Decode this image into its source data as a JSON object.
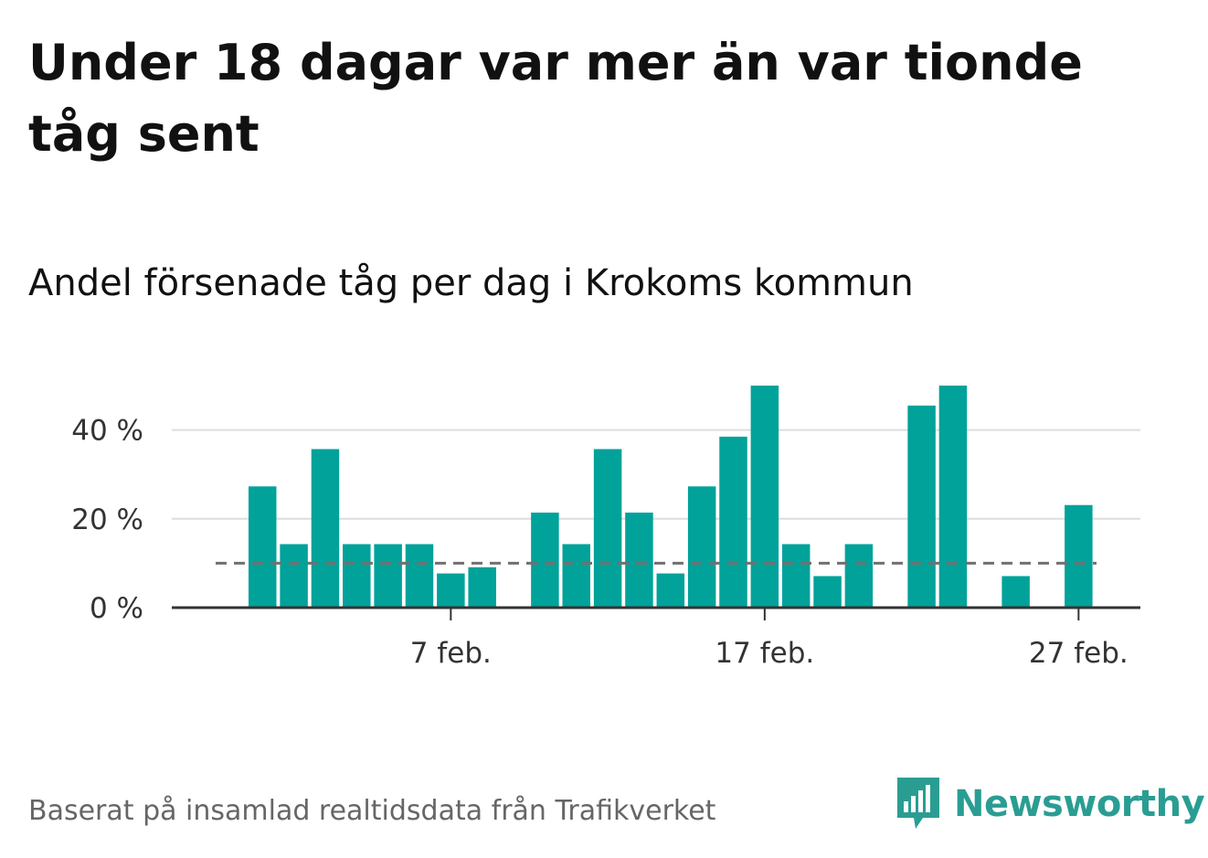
{
  "title": "Under 18 dagar var mer än var tionde tåg sent",
  "subtitle": "Andel försenade tåg per dag i Krokoms kommun",
  "source": "Baserat på insamlad realtidsdata från Trafikverket",
  "brand": {
    "name": "Newsworthy",
    "color": "#2a9d93",
    "icon": "newsworthy-logo-icon"
  },
  "chart_data": {
    "type": "bar",
    "bar_color": "#00a29a",
    "threshold_color": "#707070",
    "x_start": "2022-02-01",
    "x": [
      "2022-02-01",
      "2022-02-02",
      "2022-02-03",
      "2022-02-04",
      "2022-02-05",
      "2022-02-06",
      "2022-02-07",
      "2022-02-08",
      "2022-02-09",
      "2022-02-10",
      "2022-02-11",
      "2022-02-12",
      "2022-02-13",
      "2022-02-14",
      "2022-02-15",
      "2022-02-16",
      "2022-02-17",
      "2022-02-18",
      "2022-02-19",
      "2022-02-20",
      "2022-02-21",
      "2022-02-22",
      "2022-02-23",
      "2022-02-24",
      "2022-02-25",
      "2022-02-26",
      "2022-02-27",
      "2022-02-28"
    ],
    "values": [
      27.3,
      14.3,
      35.7,
      14.3,
      14.3,
      14.3,
      7.7,
      9.1,
      null,
      21.4,
      14.3,
      35.7,
      21.4,
      7.7,
      27.3,
      38.5,
      50.0,
      14.3,
      7.1,
      14.3,
      null,
      45.5,
      50.0,
      null,
      7.1,
      null,
      23.1,
      null
    ],
    "threshold": 10,
    "ylim": [
      0,
      50
    ],
    "y_ticks": [
      {
        "value": 0,
        "label": "0 %"
      },
      {
        "value": 20,
        "label": "20 %"
      },
      {
        "value": 40,
        "label": "40 %"
      }
    ],
    "x_ticks": [
      {
        "date": "2022-02-07",
        "label": "7 feb."
      },
      {
        "date": "2022-02-17",
        "label": "17 feb."
      },
      {
        "date": "2022-02-27",
        "label": "27 feb."
      }
    ],
    "grid": true,
    "xlabel": "",
    "ylabel": ""
  }
}
